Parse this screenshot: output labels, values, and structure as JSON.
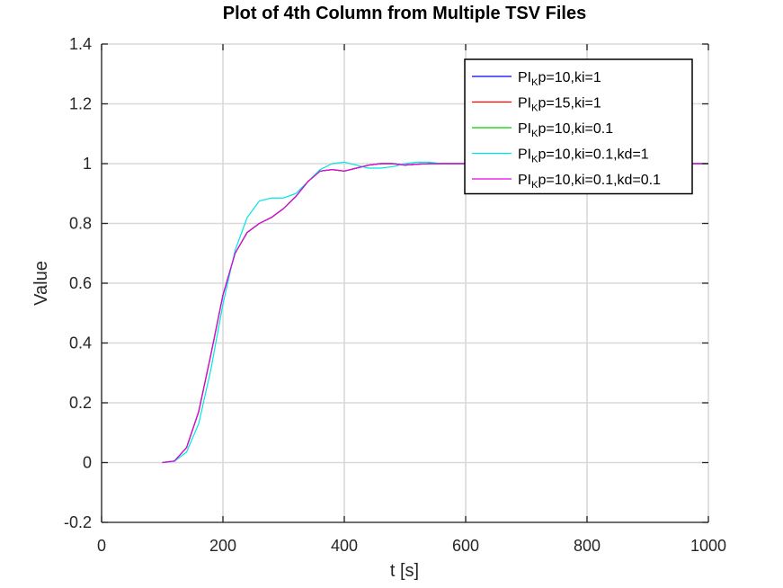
{
  "chart_data": {
    "type": "line",
    "title": "Plot of 4th Column from Multiple TSV Files",
    "xlabel": "t [s]",
    "ylabel": "Value",
    "xlim": [
      0,
      1000
    ],
    "ylim": [
      -0.2,
      1.4
    ],
    "xticks": [
      0,
      200,
      400,
      600,
      800,
      1000
    ],
    "xtick_labels": [
      "0",
      "200",
      "400",
      "600",
      "800",
      "1000"
    ],
    "yticks": [
      -0.2,
      0,
      0.2,
      0.4,
      0.6,
      0.8,
      1,
      1.2,
      1.4
    ],
    "ytick_labels": [
      "-0.2",
      "0",
      "0.2",
      "0.4",
      "0.6",
      "0.8",
      "1",
      "1.2",
      "1.4"
    ],
    "grid": true,
    "legend_position": "top-right",
    "series": [
      {
        "name": "PIKp=10,ki=1",
        "label_parts": [
          "PI",
          "K",
          "p=10,ki=1"
        ],
        "color": "#0000ff",
        "x": [
          100,
          120,
          140,
          160,
          180,
          200,
          220,
          240,
          260,
          280,
          300,
          320,
          340,
          360,
          380,
          400,
          420,
          440,
          460,
          480,
          500,
          520,
          540,
          560,
          580,
          600,
          1000
        ],
        "y": [
          0,
          0.005,
          0.05,
          0.17,
          0.36,
          0.56,
          0.7,
          0.77,
          0.8,
          0.82,
          0.85,
          0.89,
          0.94,
          0.975,
          0.98,
          0.975,
          0.985,
          0.995,
          1.0,
          1.0,
          0.995,
          0.998,
          1.0,
          1.0,
          1.0,
          1.0,
          1.0
        ]
      },
      {
        "name": "PIKp=15,ki=1",
        "label_parts": [
          "PI",
          "K",
          "p=15,ki=1"
        ],
        "color": "#ff0000",
        "x": [
          100,
          120,
          140,
          160,
          180,
          200,
          220,
          240,
          260,
          280,
          300,
          320,
          340,
          360,
          380,
          400,
          420,
          440,
          460,
          480,
          500,
          520,
          540,
          560,
          580,
          600,
          1000
        ],
        "y": [
          0,
          0.005,
          0.05,
          0.17,
          0.36,
          0.56,
          0.7,
          0.77,
          0.8,
          0.82,
          0.85,
          0.89,
          0.94,
          0.975,
          0.98,
          0.975,
          0.985,
          0.995,
          1.0,
          1.0,
          0.995,
          0.998,
          1.0,
          1.0,
          1.0,
          1.0,
          1.0
        ]
      },
      {
        "name": "PIKp=10,ki=0.1",
        "label_parts": [
          "PI",
          "K",
          "p=10,ki=0.1"
        ],
        "color": "#00cc00",
        "x": [
          100,
          120,
          140,
          160,
          180,
          200,
          220,
          240,
          260,
          280,
          300,
          320,
          340,
          360,
          380,
          400,
          420,
          440,
          460,
          480,
          500,
          520,
          540,
          560,
          580,
          600,
          1000
        ],
        "y": [
          0,
          0.005,
          0.05,
          0.17,
          0.36,
          0.56,
          0.7,
          0.77,
          0.8,
          0.82,
          0.85,
          0.89,
          0.94,
          0.975,
          0.98,
          0.975,
          0.985,
          0.995,
          1.0,
          1.0,
          0.995,
          0.998,
          1.0,
          1.0,
          1.0,
          1.0,
          1.0
        ]
      },
      {
        "name": "PIKp=10,ki=0.1,kd=1",
        "label_parts": [
          "PI",
          "K",
          "p=10,ki=0.1,kd=1"
        ],
        "color": "#00e5e5",
        "x": [
          100,
          120,
          140,
          160,
          180,
          200,
          220,
          240,
          260,
          280,
          300,
          320,
          340,
          360,
          380,
          400,
          420,
          440,
          460,
          480,
          500,
          520,
          540,
          560,
          580,
          600,
          1000
        ],
        "y": [
          0,
          0.004,
          0.035,
          0.13,
          0.31,
          0.53,
          0.71,
          0.82,
          0.875,
          0.885,
          0.885,
          0.9,
          0.94,
          0.98,
          1.0,
          1.005,
          0.995,
          0.985,
          0.985,
          0.99,
          1.0,
          1.005,
          1.005,
          1.0,
          1.0,
          1.0,
          1.0
        ]
      },
      {
        "name": "PIKp=10,ki=0.1,kd=0.1",
        "label_parts": [
          "PI",
          "K",
          "p=10,ki=0.1,kd=0.1"
        ],
        "color": "#e500e5",
        "x": [
          100,
          120,
          140,
          160,
          180,
          200,
          220,
          240,
          260,
          280,
          300,
          320,
          340,
          360,
          380,
          400,
          420,
          440,
          460,
          480,
          500,
          520,
          540,
          560,
          580,
          600,
          1000
        ],
        "y": [
          0,
          0.005,
          0.05,
          0.17,
          0.36,
          0.56,
          0.7,
          0.77,
          0.8,
          0.82,
          0.85,
          0.89,
          0.94,
          0.975,
          0.98,
          0.975,
          0.985,
          0.995,
          1.0,
          1.0,
          0.995,
          0.998,
          1.0,
          1.0,
          1.0,
          1.0,
          1.0
        ]
      }
    ]
  }
}
